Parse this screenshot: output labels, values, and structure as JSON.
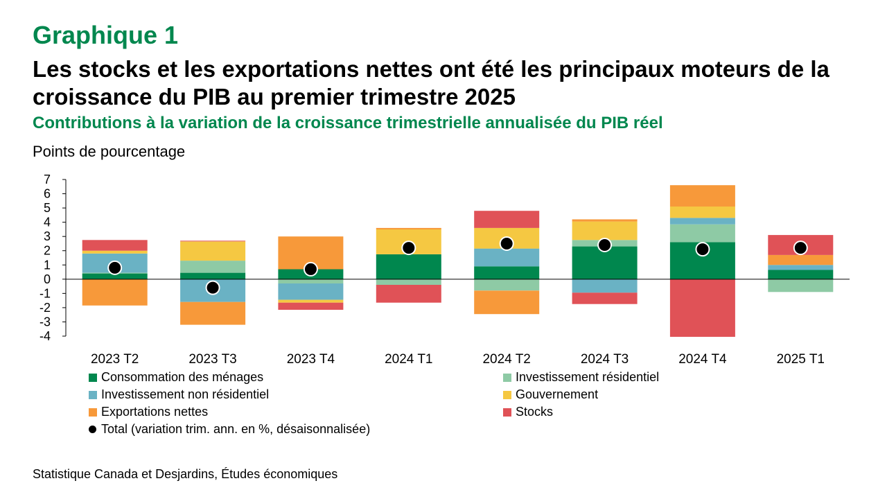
{
  "header": {
    "graph_label": "Graphique 1",
    "title": "Les stocks et les exportations nettes ont été les principaux moteurs de la croissance du PIB au premier trimestre 2025",
    "subtitle": "Contributions à la variation de la croissance trimestrielle annualisée du PIB réel",
    "unit": "Points de pourcentage"
  },
  "legend": {
    "consommation": "Consommation des ménages",
    "residentiel": "Investissement résidentiel",
    "non_residentiel": "Investissement non résidentiel",
    "gouvernement": "Gouvernement",
    "exportations": "Exportations nettes",
    "stocks": "Stocks",
    "total": "Total (variation trim. ann. en %, désaisonnalisée)"
  },
  "source": "Statistique Canada et Desjardins, Études économiques",
  "colors": {
    "consommation": "#00874e",
    "residentiel": "#8ecaa5",
    "non_residentiel": "#6ab2c4",
    "gouvernement": "#f5c842",
    "exportations": "#f7993a",
    "stocks": "#e05257",
    "total": "#000000"
  },
  "chart_data": {
    "type": "bar",
    "stacked": true,
    "categories": [
      "2023 T2",
      "2023 T3",
      "2023 T4",
      "2024 T1",
      "2024 T2",
      "2024 T3",
      "2024 T4",
      "2025 T1"
    ],
    "ylim": [
      -4,
      7
    ],
    "yticks": [
      -4,
      -3,
      -2,
      -1,
      0,
      1,
      2,
      3,
      4,
      5,
      6,
      7
    ],
    "ylabel": "Points de pourcentage",
    "series": [
      {
        "key": "consommation",
        "name": "Consommation des ménages",
        "values": [
          0.4,
          0.45,
          0.7,
          1.75,
          0.9,
          2.3,
          2.6,
          0.65
        ]
      },
      {
        "key": "residentiel",
        "name": "Investissement résidentiel",
        "values": [
          0.05,
          0.85,
          -0.3,
          -0.4,
          -0.8,
          0.45,
          1.25,
          -0.9
        ]
      },
      {
        "key": "non_residentiel",
        "name": "Investissement non résidentiel",
        "values": [
          1.35,
          -1.6,
          -1.15,
          0.0,
          1.25,
          -0.95,
          0.45,
          0.35
        ]
      },
      {
        "key": "gouvernement",
        "name": "Gouvernement",
        "values": [
          0.2,
          1.35,
          -0.2,
          1.75,
          1.45,
          1.3,
          0.8,
          0.0
        ]
      },
      {
        "key": "exportations",
        "name": "Exportations nettes",
        "values": [
          -1.85,
          -1.6,
          2.3,
          0.1,
          -1.65,
          0.15,
          1.5,
          0.7
        ]
      },
      {
        "key": "stocks",
        "name": "Stocks",
        "values": [
          0.75,
          0.05,
          -0.5,
          -1.25,
          1.2,
          -0.8,
          -4.05,
          1.4
        ]
      }
    ],
    "total": {
      "name": "Total (variation trim. ann. en %, désaisonnalisée)",
      "values": [
        0.8,
        -0.6,
        0.7,
        2.2,
        2.5,
        2.4,
        2.1,
        2.2
      ]
    },
    "legend_position": "bottom"
  }
}
